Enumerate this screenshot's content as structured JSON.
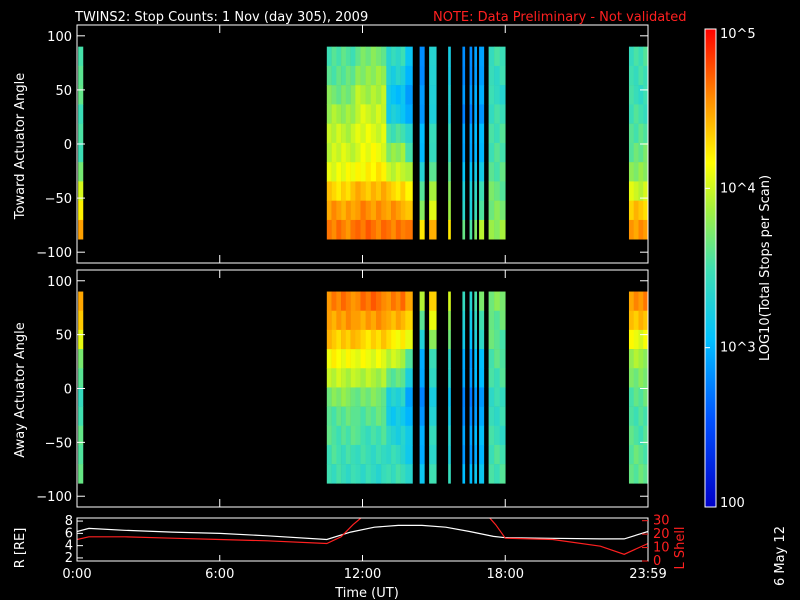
{
  "title": {
    "main": "TWINS2: Stop Counts:  1 Nov (day 305), 2009",
    "note": "NOTE: Data Preliminary - Not validated",
    "note_color": "#ff2020"
  },
  "date_stamp": "6 May 12",
  "colorbar": {
    "label": "LOG10(Total Stops per Scan)",
    "tick_labels": [
      "100",
      "10^3",
      "10^4",
      "10^5"
    ],
    "tick_values": [
      100,
      1000,
      10000,
      100000
    ],
    "colormap": "rainbow (blue low, red high)"
  },
  "chart_data": [
    {
      "type": "heatmap",
      "name": "toward",
      "ylabel": "Toward Actuator Angle",
      "yticks": [
        100,
        50,
        0,
        -50,
        -100
      ],
      "tick_labels": [
        "100",
        "50",
        "0",
        "−50",
        "−100"
      ],
      "ylim": [
        -110,
        110
      ],
      "xlim": [
        0,
        24
      ],
      "data_y_range": [
        -88,
        90
      ],
      "value_scale": "log10 counts",
      "segments": [
        {
          "start": 0.05,
          "end": 0.25,
          "profile": [
            3.6,
            3.6,
            3.55,
            3.5,
            3.5,
            3.55,
            3.7,
            3.95,
            4.25,
            4.45
          ]
        },
        {
          "start": 10.5,
          "end": 11.7,
          "profile": [
            3.55,
            3.6,
            3.7,
            3.85,
            3.95,
            4.0,
            4.1,
            4.3,
            4.5,
            4.6
          ]
        },
        {
          "start": 11.7,
          "end": 13.0,
          "profile": [
            3.7,
            3.8,
            3.9,
            4.0,
            4.05,
            4.1,
            4.2,
            4.4,
            4.55,
            4.65
          ]
        },
        {
          "start": 13.0,
          "end": 13.8,
          "profile": [
            3.4,
            3.3,
            3.1,
            3.2,
            3.5,
            3.8,
            4.0,
            4.3,
            4.5,
            4.6
          ]
        },
        {
          "start": 13.8,
          "end": 14.1,
          "profile": [
            3.2,
            3.0,
            2.8,
            3.0,
            3.3,
            3.6,
            3.9,
            4.1,
            4.4,
            4.6
          ]
        },
        {
          "start": 14.4,
          "end": 14.6,
          "profile": [
            2.9,
            2.8,
            2.8,
            2.9,
            3.0,
            3.1,
            3.3,
            3.5,
            3.8,
            4.2
          ]
        },
        {
          "start": 14.8,
          "end": 15.1,
          "profile": [
            3.4,
            3.3,
            3.2,
            3.3,
            3.4,
            3.5,
            3.6,
            3.8,
            4.1,
            4.4
          ]
        },
        {
          "start": 15.6,
          "end": 15.7,
          "profile": [
            3.3,
            3.2,
            3.2,
            3.3,
            3.4,
            3.5,
            3.6,
            3.7,
            3.9,
            4.2
          ]
        },
        {
          "start": 16.2,
          "end": 16.3,
          "profile": [
            2.9,
            2.8,
            2.8,
            2.8,
            2.9,
            3.0,
            3.1,
            3.2,
            3.4,
            3.6
          ]
        },
        {
          "start": 16.5,
          "end": 16.6,
          "profile": [
            2.9,
            2.8,
            2.8,
            2.8,
            2.9,
            3.0,
            3.1,
            3.2,
            3.3,
            3.5
          ]
        },
        {
          "start": 16.7,
          "end": 16.8,
          "profile": [
            3.0,
            2.9,
            2.9,
            3.0,
            3.0,
            3.1,
            3.2,
            3.3,
            3.5,
            3.7
          ]
        },
        {
          "start": 16.9,
          "end": 17.1,
          "profile": [
            3.0,
            2.9,
            2.9,
            2.9,
            3.0,
            3.1,
            3.2,
            3.4,
            3.6,
            3.9
          ]
        },
        {
          "start": 17.3,
          "end": 18.0,
          "profile": [
            3.5,
            3.45,
            3.4,
            3.45,
            3.5,
            3.55,
            3.6,
            3.65,
            3.7,
            3.8
          ]
        },
        {
          "start": 23.2,
          "end": 24.0,
          "profile": [
            3.5,
            3.5,
            3.45,
            3.5,
            3.55,
            3.65,
            3.8,
            4.0,
            4.35,
            4.5
          ]
        }
      ]
    },
    {
      "type": "heatmap",
      "name": "away",
      "ylabel": "Away Actuator Angle",
      "yticks": [
        100,
        50,
        0,
        -50,
        -100
      ],
      "tick_labels": [
        "100",
        "50",
        "0",
        "−50",
        "−100"
      ],
      "ylim": [
        -110,
        110
      ],
      "xlim": [
        0,
        24
      ],
      "data_y_range": [
        -88,
        90
      ],
      "value_scale": "log10 counts",
      "segments": [
        {
          "start": 0.05,
          "end": 0.25,
          "profile": [
            4.55,
            4.35,
            4.0,
            3.75,
            3.55,
            3.5,
            3.5,
            3.55,
            3.6,
            3.6
          ]
        },
        {
          "start": 10.5,
          "end": 11.7,
          "profile": [
            4.6,
            4.5,
            4.35,
            4.15,
            3.95,
            3.75,
            3.6,
            3.55,
            3.5,
            3.45
          ]
        },
        {
          "start": 11.7,
          "end": 13.0,
          "profile": [
            4.65,
            4.5,
            4.3,
            4.1,
            3.9,
            3.7,
            3.6,
            3.5,
            3.45,
            3.4
          ]
        },
        {
          "start": 13.0,
          "end": 13.8,
          "profile": [
            4.6,
            4.45,
            4.2,
            3.95,
            3.6,
            3.3,
            3.2,
            3.3,
            3.4,
            3.45
          ]
        },
        {
          "start": 13.8,
          "end": 14.1,
          "profile": [
            4.55,
            4.3,
            4.0,
            3.6,
            3.2,
            3.0,
            3.0,
            3.1,
            3.2,
            3.3
          ]
        },
        {
          "start": 14.4,
          "end": 14.6,
          "profile": [
            4.0,
            3.6,
            3.2,
            3.0,
            2.9,
            2.85,
            2.85,
            2.9,
            3.0,
            3.1
          ]
        },
        {
          "start": 14.8,
          "end": 15.1,
          "profile": [
            4.4,
            4.1,
            3.7,
            3.5,
            3.35,
            3.3,
            3.3,
            3.35,
            3.4,
            3.45
          ]
        },
        {
          "start": 15.6,
          "end": 15.7,
          "profile": [
            4.1,
            3.8,
            3.6,
            3.4,
            3.3,
            3.2,
            3.2,
            3.25,
            3.3,
            3.4
          ]
        },
        {
          "start": 16.2,
          "end": 16.3,
          "profile": [
            3.5,
            3.3,
            3.1,
            3.0,
            2.9,
            2.85,
            2.8,
            2.85,
            2.9,
            3.0
          ]
        },
        {
          "start": 16.5,
          "end": 16.6,
          "profile": [
            3.4,
            3.2,
            3.0,
            2.9,
            2.85,
            2.8,
            2.8,
            2.85,
            2.9,
            3.0
          ]
        },
        {
          "start": 16.7,
          "end": 16.8,
          "profile": [
            3.6,
            3.4,
            3.2,
            3.1,
            3.0,
            2.95,
            2.9,
            2.95,
            3.0,
            3.1
          ]
        },
        {
          "start": 16.9,
          "end": 17.1,
          "profile": [
            3.8,
            3.5,
            3.3,
            3.1,
            3.0,
            2.95,
            2.95,
            3.0,
            3.05,
            3.1
          ]
        },
        {
          "start": 17.3,
          "end": 18.0,
          "profile": [
            3.75,
            3.65,
            3.6,
            3.55,
            3.5,
            3.45,
            3.45,
            3.45,
            3.5,
            3.5
          ]
        },
        {
          "start": 23.2,
          "end": 24.0,
          "profile": [
            4.55,
            4.4,
            4.1,
            3.85,
            3.7,
            3.6,
            3.55,
            3.55,
            3.6,
            3.6
          ]
        }
      ]
    },
    {
      "type": "line",
      "name": "ephemeris",
      "ylabel_left": "R [RE]",
      "ylabel_right": "L Shell",
      "yticks_left": [
        2,
        4,
        6,
        8
      ],
      "yticks_left_labels": [
        "2",
        "4",
        "6",
        "8"
      ],
      "ylim_left": [
        1.5,
        8.5
      ],
      "yticks_right": [
        0,
        10,
        20,
        30
      ],
      "yticks_right_labels": [
        "0",
        "10",
        "20",
        "30"
      ],
      "ylim_right": [
        0,
        32
      ],
      "xlim": [
        0,
        24
      ],
      "xticks": [
        0,
        6,
        12,
        18,
        24
      ],
      "xtick_labels": [
        "0:00",
        "6:00",
        "12:00",
        "18:00",
        "23:59"
      ],
      "xlabel": "Time (UT)",
      "series": [
        {
          "axis": "left",
          "color": "#ffffff",
          "x": [
            0,
            0.5,
            2,
            4,
            6,
            8,
            10.5,
            11.5,
            12.5,
            13.5,
            14.5,
            15.5,
            16.5,
            17.5,
            18,
            20,
            22,
            23,
            24
          ],
          "y": [
            6.3,
            6.8,
            6.5,
            6.2,
            6.0,
            5.6,
            5.0,
            6.2,
            7.0,
            7.3,
            7.3,
            7.0,
            6.3,
            5.5,
            5.3,
            5.2,
            5.1,
            5.1,
            6.3
          ]
        },
        {
          "axis": "right",
          "color": "#ff2020",
          "x": [
            0,
            0.5,
            2,
            4,
            6,
            8,
            10.5,
            11.1,
            11.6,
            12.0,
            17.3,
            17.6,
            18.0,
            20,
            22,
            23,
            24
          ],
          "y": [
            16,
            18,
            18,
            17,
            16,
            15,
            13,
            18,
            27,
            33,
            33,
            27,
            17,
            16,
            11,
            5,
            13
          ]
        }
      ]
    }
  ]
}
